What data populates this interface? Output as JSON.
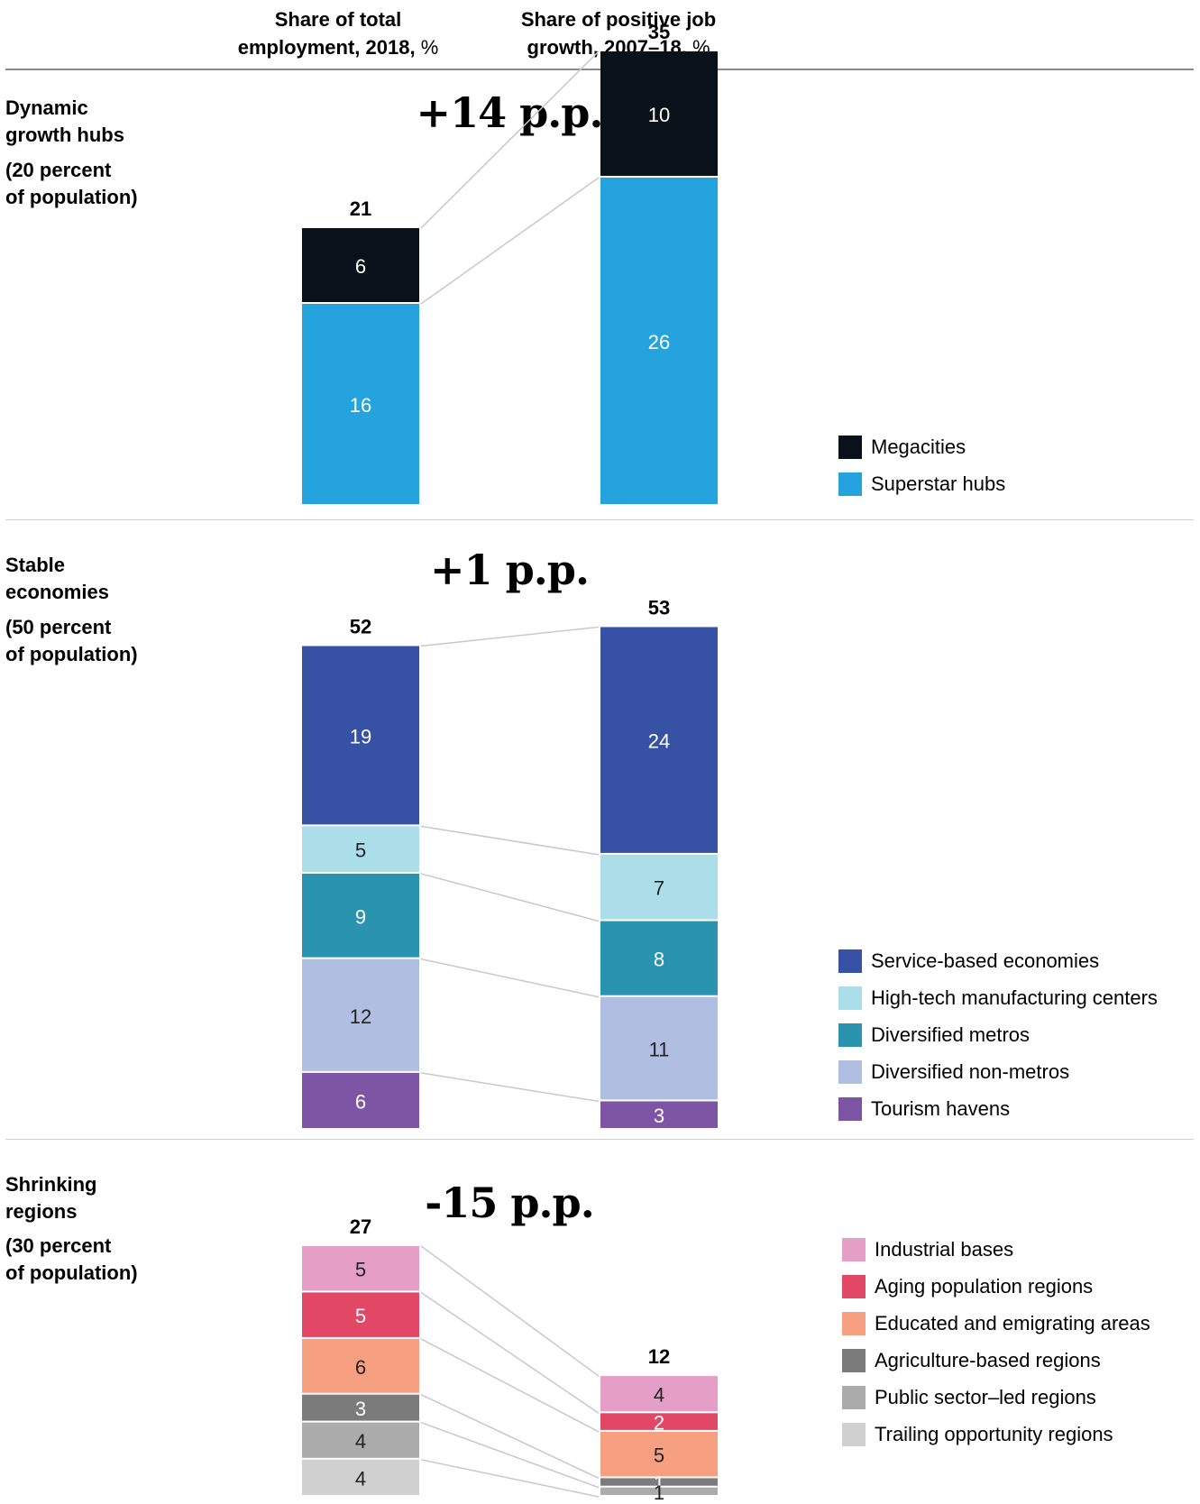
{
  "headers": {
    "col1_line1": "Share of total",
    "col1_line2": "employment, 2018,",
    "col1_unit": "%",
    "col2_line1": "Share of positive job",
    "col2_line2": "growth, 2007–18,",
    "col2_unit": "%"
  },
  "groups": [
    {
      "title_line1": "Dynamic",
      "title_line2": "growth hubs",
      "sub_line1": "(20 percent",
      "sub_line2": "of population)",
      "delta": "+14 p.p."
    },
    {
      "title_line1": "Stable",
      "title_line2": "economies",
      "sub_line1": "(50 percent",
      "sub_line2": "of population)",
      "delta": "+1 p.p."
    },
    {
      "title_line1": "Shrinking",
      "title_line2": "regions",
      "sub_line1": "(30 percent",
      "sub_line2": "of population)",
      "delta": "-15 p.p."
    }
  ],
  "chart_data": {
    "type": "bar",
    "stacked": true,
    "categories": [
      "Share of total employment, 2018, %",
      "Share of positive job growth, 2007–18, %"
    ],
    "groups": [
      {
        "name": "Dynamic growth hubs",
        "totals": [
          21,
          35
        ],
        "series": [
          {
            "name": "Megacities",
            "values": [
              6,
              10
            ],
            "color": "#0b111b"
          },
          {
            "name": "Superstar hubs",
            "values": [
              16,
              26
            ],
            "color": "#24a3de"
          }
        ]
      },
      {
        "name": "Stable economies",
        "totals": [
          52,
          53
        ],
        "series": [
          {
            "name": "Service-based economies",
            "values": [
              19,
              24
            ],
            "color": "#3752a4"
          },
          {
            "name": "High-tech manufacturing centers",
            "values": [
              5,
              7
            ],
            "color": "#abdee8"
          },
          {
            "name": "Diversified metros",
            "values": [
              9,
              8
            ],
            "color": "#2993b0"
          },
          {
            "name": "Diversified non-metros",
            "values": [
              12,
              11
            ],
            "color": "#b0bee1"
          },
          {
            "name": "Tourism havens",
            "values": [
              6,
              3
            ],
            "color": "#7e55a5"
          }
        ]
      },
      {
        "name": "Shrinking regions",
        "totals": [
          27,
          12
        ],
        "series": [
          {
            "name": "Industrial bases",
            "values": [
              5,
              4
            ],
            "color": "#e59fc7"
          },
          {
            "name": "Aging population regions",
            "values": [
              5,
              2
            ],
            "color": "#e24866"
          },
          {
            "name": "Educated and emigrating areas",
            "values": [
              6,
              5
            ],
            "color": "#f6a081"
          },
          {
            "name": "Agriculture-based regions",
            "values": [
              3,
              1
            ],
            "color": "#7b7b7b"
          },
          {
            "name": "Public sector–led regions",
            "values": [
              4,
              1
            ],
            "color": "#ababab"
          },
          {
            "name": "Trailing opportunity regions",
            "values": [
              4,
              0
            ],
            "color": "#d0d0d0"
          }
        ]
      }
    ]
  }
}
